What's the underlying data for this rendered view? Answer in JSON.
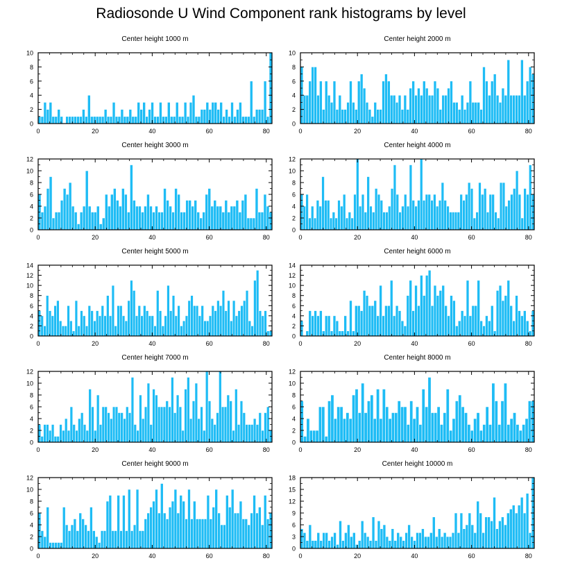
{
  "page_title": "Radiosonde U Wind Component rank histograms by level",
  "colors": {
    "bar": "#1ebcf5",
    "bar_edge": "#ffffff",
    "axis": "#000000"
  },
  "chart_data": [
    {
      "type": "bar",
      "title": "Center height 1000 m",
      "xlim": [
        0,
        82
      ],
      "xticks": [
        0,
        20,
        40,
        60,
        80
      ],
      "ylim": [
        0,
        10
      ],
      "yticks": [
        0,
        2,
        4,
        6,
        8,
        10
      ],
      "values": [
        1,
        1,
        3,
        2,
        3,
        1,
        1,
        2,
        1,
        0,
        1,
        1,
        1,
        1,
        1,
        1,
        2,
        1,
        4,
        1,
        1,
        1,
        1,
        1,
        2,
        1,
        1,
        3,
        1,
        1,
        2,
        1,
        1,
        2,
        1,
        1,
        3,
        2,
        3,
        1,
        2,
        3,
        1,
        1,
        3,
        1,
        1,
        3,
        1,
        1,
        3,
        1,
        1,
        3,
        1,
        3,
        4,
        1,
        1,
        2,
        2,
        3,
        2,
        3,
        3,
        2,
        3,
        1,
        2,
        1,
        3,
        1,
        2,
        3,
        1,
        1,
        1,
        6,
        1,
        2,
        2,
        2,
        6,
        1,
        10
      ]
    },
    {
      "type": "bar",
      "title": "Center height 2000 m",
      "xlim": [
        0,
        82
      ],
      "xticks": [
        0,
        20,
        40,
        60,
        80
      ],
      "ylim": [
        0,
        10
      ],
      "yticks": [
        0,
        2,
        4,
        6,
        8,
        10
      ],
      "values": [
        8,
        4,
        4,
        6,
        8,
        8,
        4,
        6,
        2,
        6,
        4,
        3,
        6,
        2,
        4,
        2,
        2,
        3,
        6,
        3,
        2,
        6,
        7,
        5,
        3,
        2,
        1,
        3,
        2,
        2,
        6,
        7,
        6,
        4,
        4,
        3,
        4,
        2,
        4,
        2,
        5,
        6,
        4,
        5,
        4,
        6,
        5,
        4,
        4,
        6,
        5,
        2,
        4,
        4,
        5,
        6,
        3,
        3,
        2,
        4,
        2,
        3,
        6,
        3,
        3,
        3,
        2,
        8,
        6,
        4,
        6,
        7,
        4,
        3,
        5,
        4,
        9,
        4,
        4,
        4,
        4,
        9,
        4,
        6,
        8,
        7
      ]
    },
    {
      "type": "bar",
      "title": "Center height 3000 m",
      "xlim": [
        0,
        82
      ],
      "xticks": [
        0,
        20,
        40,
        60,
        80
      ],
      "ylim": [
        0,
        12
      ],
      "yticks": [
        0,
        2,
        4,
        6,
        8,
        10,
        12
      ],
      "values": [
        6,
        3,
        4,
        7,
        9,
        2,
        3,
        3,
        5,
        7,
        6,
        8,
        4,
        3,
        1,
        3,
        4,
        10,
        4,
        3,
        3,
        4,
        1,
        2,
        6,
        4,
        6,
        7,
        5,
        4,
        7,
        6,
        3,
        11,
        5,
        4,
        4,
        3,
        4,
        6,
        4,
        3,
        4,
        3,
        3,
        7,
        5,
        4,
        3,
        7,
        6,
        3,
        3,
        5,
        5,
        4,
        5,
        3,
        2,
        3,
        6,
        7,
        4,
        5,
        4,
        4,
        3,
        5,
        3,
        4,
        4,
        5,
        3,
        5,
        6,
        2,
        2,
        2,
        7,
        3,
        3,
        6,
        4,
        3
      ]
    },
    {
      "type": "bar",
      "title": "Center height 4000 m",
      "xlim": [
        0,
        82
      ],
      "xticks": [
        0,
        20,
        40,
        60,
        80
      ],
      "ylim": [
        0,
        12
      ],
      "yticks": [
        0,
        2,
        4,
        6,
        8,
        10,
        12
      ],
      "values": [
        6,
        4,
        6,
        2,
        4,
        2,
        5,
        4,
        9,
        5,
        5,
        2,
        3,
        2,
        5,
        4,
        6,
        2,
        3,
        2,
        6,
        12,
        4,
        6,
        3,
        9,
        4,
        3,
        7,
        6,
        5,
        3,
        3,
        4,
        7,
        11,
        6,
        3,
        4,
        6,
        4,
        11,
        5,
        4,
        5,
        12,
        5,
        6,
        6,
        5,
        6,
        4,
        5,
        8,
        5,
        4,
        3,
        3,
        3,
        3,
        6,
        5,
        6,
        8,
        7,
        2,
        3,
        8,
        6,
        7,
        3,
        6,
        6,
        3,
        2,
        8,
        8,
        4,
        5,
        6,
        7,
        10,
        6,
        2,
        7,
        6,
        11,
        6
      ]
    },
    {
      "type": "bar",
      "title": "Center height 5000 m",
      "xlim": [
        0,
        82
      ],
      "xticks": [
        0,
        20,
        40,
        60,
        80
      ],
      "ylim": [
        0,
        14
      ],
      "yticks": [
        0,
        2,
        4,
        6,
        8,
        10,
        12,
        14
      ],
      "values": [
        5,
        4,
        2,
        8,
        5,
        4,
        6,
        7,
        3,
        2,
        2,
        6,
        3,
        1,
        7,
        2,
        5,
        4,
        2,
        6,
        5,
        3,
        5,
        4,
        6,
        4,
        8,
        4,
        10,
        2,
        6,
        6,
        4,
        3,
        7,
        11,
        9,
        4,
        6,
        4,
        6,
        5,
        4,
        4,
        2,
        9,
        5,
        2,
        4,
        10,
        5,
        8,
        4,
        6,
        2,
        3,
        4,
        7,
        8,
        6,
        6,
        4,
        6,
        3,
        3,
        4,
        6,
        5,
        7,
        6,
        9,
        5,
        7,
        3,
        7,
        4,
        5,
        6,
        7,
        9,
        3,
        2,
        11,
        13,
        5,
        4,
        5,
        1,
        1
      ]
    },
    {
      "type": "bar",
      "title": "Center height 6000 m",
      "xlim": [
        0,
        82
      ],
      "xticks": [
        0,
        20,
        40,
        60,
        80
      ],
      "ylim": [
        0,
        14
      ],
      "yticks": [
        0,
        2,
        4,
        6,
        8,
        10,
        12,
        14
      ],
      "values": [
        3,
        0,
        1,
        5,
        4,
        5,
        4,
        5,
        1,
        4,
        4,
        1,
        4,
        3,
        1,
        1,
        4,
        1,
        7,
        1,
        6,
        6,
        5,
        9,
        8,
        6,
        6,
        7,
        4,
        10,
        4,
        6,
        6,
        11,
        4,
        6,
        5,
        3,
        2,
        8,
        11,
        5,
        10,
        6,
        12,
        8,
        12,
        13,
        6,
        10,
        8,
        9,
        10,
        6,
        4,
        8,
        7,
        2,
        3,
        5,
        4,
        11,
        4,
        6,
        6,
        11,
        3,
        2,
        4,
        3,
        6,
        1,
        9,
        10,
        7,
        8,
        11,
        6,
        3,
        8,
        5,
        4,
        5,
        3,
        1,
        5
      ]
    },
    {
      "type": "bar",
      "title": "Center height 7000 m",
      "xlim": [
        0,
        82
      ],
      "xticks": [
        0,
        20,
        40,
        60,
        80
      ],
      "ylim": [
        0,
        12
      ],
      "yticks": [
        0,
        2,
        4,
        6,
        8,
        10,
        12
      ],
      "values": [
        3,
        1,
        3,
        3,
        2,
        3,
        1,
        1,
        3,
        2,
        4,
        2,
        6,
        3,
        2,
        4,
        5,
        3,
        2,
        9,
        6,
        2,
        8,
        3,
        6,
        6,
        5,
        4,
        6,
        6,
        5,
        5,
        4,
        6,
        5,
        11,
        3,
        2,
        8,
        4,
        6,
        10,
        3,
        9,
        8,
        6,
        6,
        6,
        7,
        6,
        11,
        5,
        8,
        6,
        2,
        9,
        11,
        4,
        7,
        10,
        4,
        6,
        2,
        12,
        7,
        4,
        3,
        5,
        12,
        6,
        6,
        8,
        7,
        2,
        9,
        3,
        7,
        5,
        3,
        3,
        3,
        4,
        3,
        5,
        2,
        5,
        6,
        2
      ]
    },
    {
      "type": "bar",
      "title": "Center height 8000 m",
      "xlim": [
        0,
        82
      ],
      "xticks": [
        0,
        20,
        40,
        60,
        80
      ],
      "ylim": [
        0,
        12
      ],
      "yticks": [
        0,
        2,
        4,
        6,
        8,
        10,
        12
      ],
      "values": [
        7,
        1,
        4,
        2,
        2,
        2,
        6,
        6,
        1,
        7,
        8,
        4,
        6,
        6,
        4,
        5,
        4,
        8,
        9,
        5,
        10,
        5,
        7,
        8,
        4,
        9,
        4,
        9,
        6,
        4,
        5,
        5,
        7,
        6,
        6,
        3,
        7,
        4,
        6,
        3,
        9,
        6,
        11,
        5,
        5,
        6,
        3,
        5,
        9,
        2,
        4,
        7,
        8,
        6,
        5,
        3,
        2,
        4,
        5,
        2,
        3,
        6,
        3,
        10,
        7,
        3,
        7,
        10,
        3,
        4,
        5,
        3,
        2,
        3,
        4,
        7,
        7
      ]
    },
    {
      "type": "bar",
      "title": "Center height 9000 m",
      "xlim": [
        0,
        82
      ],
      "xticks": [
        0,
        20,
        40,
        60,
        80
      ],
      "ylim": [
        0,
        12
      ],
      "yticks": [
        0,
        2,
        4,
        6,
        8,
        10,
        12
      ],
      "values": [
        6,
        3,
        2,
        7,
        1,
        1,
        1,
        1,
        1,
        7,
        4,
        3,
        4,
        5,
        3,
        6,
        5,
        4,
        3,
        7,
        3,
        2,
        1,
        3,
        3,
        8,
        9,
        3,
        3,
        9,
        3,
        9,
        3,
        10,
        3,
        4,
        10,
        3,
        3,
        5,
        6,
        7,
        8,
        10,
        6,
        11,
        6,
        5,
        7,
        8,
        10,
        6,
        9,
        8,
        5,
        10,
        5,
        8,
        5,
        5,
        5,
        5,
        9,
        5,
        7,
        10,
        6,
        4,
        4,
        9,
        7,
        10,
        6,
        6,
        8,
        5,
        5,
        4,
        6,
        9,
        6,
        7,
        4,
        9,
        5,
        6
      ]
    },
    {
      "type": "bar",
      "title": "Center height 10000 m",
      "xlim": [
        0,
        82
      ],
      "xticks": [
        0,
        20,
        40,
        60,
        80
      ],
      "ylim": [
        0,
        18
      ],
      "yticks": [
        0,
        3,
        6,
        9,
        12,
        15,
        18
      ],
      "values": [
        5,
        4,
        2,
        6,
        2,
        2,
        4,
        2,
        4,
        4,
        2,
        3,
        4,
        1,
        7,
        2,
        4,
        6,
        3,
        4,
        1,
        2,
        7,
        4,
        3,
        2,
        8,
        2,
        7,
        5,
        6,
        3,
        2,
        5,
        2,
        4,
        3,
        2,
        4,
        6,
        3,
        2,
        4,
        4,
        5,
        3,
        3,
        4,
        8,
        3,
        5,
        3,
        4,
        3,
        3,
        4,
        9,
        4,
        9,
        5,
        6,
        9,
        6,
        4,
        12,
        9,
        4,
        8,
        8,
        7,
        13,
        5,
        7,
        8,
        6,
        9,
        10,
        11,
        9,
        11,
        13,
        9,
        14,
        4,
        18
      ]
    }
  ]
}
